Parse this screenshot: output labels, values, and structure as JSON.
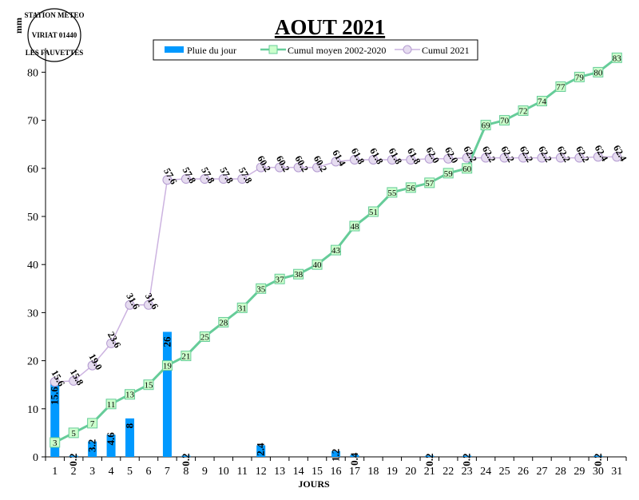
{
  "station": {
    "line1": "STATION METEO",
    "line2": "VIRIAT 01440",
    "line3": "LES FAUVETTES"
  },
  "chart_data": {
    "type": "bar",
    "title": "AOUT 2021",
    "xlabel": "JOURS",
    "ylabel": "mm",
    "ylim": [
      0,
      85
    ],
    "yticks": [
      0,
      10,
      20,
      30,
      40,
      50,
      60,
      70,
      80
    ],
    "grid": false,
    "legend_position": "top",
    "categories": [
      "1",
      "2",
      "3",
      "4",
      "5",
      "6",
      "7",
      "8",
      "9",
      "10",
      "11",
      "12",
      "13",
      "14",
      "15",
      "16",
      "17",
      "18",
      "19",
      "20",
      "21",
      "22",
      "23",
      "24",
      "25",
      "26",
      "27",
      "28",
      "29",
      "30",
      "31"
    ],
    "series": [
      {
        "name": "Pluie du jour",
        "type": "bar",
        "color": "#0099ff",
        "values": [
          15.6,
          0.2,
          3.2,
          4.6,
          8,
          0,
          26,
          0.2,
          0,
          0,
          0,
          2.4,
          0,
          0,
          0,
          1.2,
          0.4,
          0,
          0,
          0,
          0.2,
          0,
          0.2,
          0,
          0,
          0,
          0,
          0,
          0,
          0.2,
          0
        ],
        "labels": [
          "15.6",
          "0.2",
          "3.2",
          "4.6",
          "8",
          "",
          "26",
          "0.2",
          "",
          "",
          "",
          "2.4",
          "",
          "",
          "",
          "1.2",
          "0.4",
          "",
          "",
          "",
          "0.2",
          "",
          "0.2",
          "",
          "",
          "",
          "",
          "",
          "",
          "0.2",
          ""
        ]
      },
      {
        "name": "Cumul moyen 2002-2020",
        "type": "line",
        "color": "#66cc99",
        "marker": "square",
        "values": [
          3,
          5,
          7,
          11,
          13,
          15,
          19,
          21,
          25,
          28,
          31,
          35,
          37,
          38,
          40,
          43,
          48,
          51,
          55,
          56,
          57,
          59,
          60,
          69,
          70,
          72,
          74,
          77,
          79,
          80,
          83
        ],
        "labels": [
          "3",
          "5",
          "7",
          "11",
          "13",
          "15",
          "19",
          "21",
          "25",
          "28",
          "31",
          "35",
          "37",
          "38",
          "40",
          "43",
          "48",
          "51",
          "55",
          "56",
          "57",
          "59",
          "60",
          "69",
          "70",
          "72",
          "74",
          "77",
          "79",
          "80",
          "83"
        ]
      },
      {
        "name": "Cumul 2021",
        "type": "line",
        "color": "#ccb3e0",
        "marker": "circle",
        "values": [
          15.6,
          15.8,
          19.0,
          23.6,
          31.6,
          31.6,
          57.6,
          57.8,
          57.8,
          57.8,
          57.8,
          60.2,
          60.2,
          60.2,
          60.2,
          61.4,
          61.8,
          61.8,
          61.8,
          61.8,
          62.0,
          62.0,
          62.2,
          62.2,
          62.2,
          62.2,
          62.2,
          62.2,
          62.2,
          62.4,
          62.4
        ],
        "labels": [
          "15.6",
          "15.8",
          "19.0",
          "23.6",
          "31.6",
          "31.6",
          "57.6",
          "57.8",
          "57.8",
          "57.8",
          "57.8",
          "60.2",
          "60.2",
          "60.2",
          "60.2",
          "61.4",
          "61.8",
          "61.8",
          "61.8",
          "61.8",
          "62.0",
          "62.0",
          "62.2",
          "62.2",
          "62.2",
          "62.2",
          "62.2",
          "62.2",
          "62.2",
          "62.4",
          "62.4"
        ]
      }
    ]
  }
}
